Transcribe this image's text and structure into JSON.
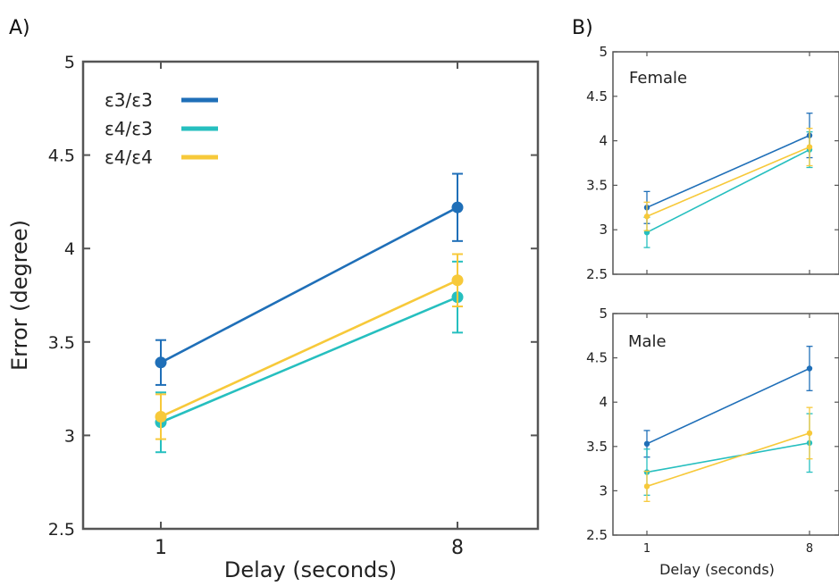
{
  "panel_labels": {
    "a": "A)",
    "b": "B)"
  },
  "colors": {
    "e3e3": "#1f6fb8",
    "e4e3": "#26bfbf",
    "e4e4": "#f7c93a",
    "axis": "#555555"
  },
  "chart_data": [
    {
      "type": "line",
      "panel": "A",
      "title": "",
      "xlabel": "Delay (seconds)",
      "ylabel": "Error (degree)",
      "categories": [
        "1",
        "8"
      ],
      "ylim": [
        2.5,
        5
      ],
      "yticks": [
        "2.5",
        "3",
        "3.5",
        "4",
        "4.5",
        "5"
      ],
      "grid": false,
      "legend": "top-left",
      "series": [
        {
          "name": "ε3/ε3",
          "color_key": "e3e3",
          "values": [
            3.39,
            4.22
          ],
          "errors": [
            0.12,
            0.18
          ]
        },
        {
          "name": "ε4/ε3",
          "color_key": "e4e3",
          "values": [
            3.07,
            3.74
          ],
          "errors": [
            0.16,
            0.19
          ]
        },
        {
          "name": "ε4/ε4",
          "color_key": "e4e4",
          "values": [
            3.1,
            3.83
          ],
          "errors": [
            0.12,
            0.14
          ]
        }
      ]
    },
    {
      "type": "line",
      "panel": "B",
      "title": "Female",
      "xlabel": "",
      "ylabel": "",
      "categories": [
        "1",
        "8"
      ],
      "ylim": [
        2.5,
        5
      ],
      "yticks": [
        "2.5",
        "3",
        "3.5",
        "4",
        "4.5",
        "5"
      ],
      "grid": false,
      "series": [
        {
          "color_key": "e3e3",
          "values": [
            3.25,
            4.06
          ],
          "errors": [
            0.18,
            0.25
          ]
        },
        {
          "color_key": "e4e3",
          "values": [
            2.97,
            3.9
          ],
          "errors": [
            0.17,
            0.2
          ]
        },
        {
          "color_key": "e4e4",
          "values": [
            3.15,
            3.93
          ],
          "errors": [
            0.16,
            0.21
          ]
        }
      ]
    },
    {
      "type": "line",
      "panel": "B",
      "title": "Male",
      "xlabel": "Delay (seconds)",
      "ylabel": "",
      "categories": [
        "1",
        "8"
      ],
      "ylim": [
        2.5,
        5
      ],
      "yticks": [
        "2.5",
        "3",
        "3.5",
        "4",
        "4.5",
        "5"
      ],
      "grid": false,
      "series": [
        {
          "color_key": "e3e3",
          "values": [
            3.53,
            4.38
          ],
          "errors": [
            0.15,
            0.25
          ]
        },
        {
          "color_key": "e4e3",
          "values": [
            3.21,
            3.54
          ],
          "errors": [
            0.26,
            0.33
          ]
        },
        {
          "color_key": "e4e4",
          "values": [
            3.05,
            3.65
          ],
          "errors": [
            0.17,
            0.29
          ]
        }
      ]
    }
  ]
}
